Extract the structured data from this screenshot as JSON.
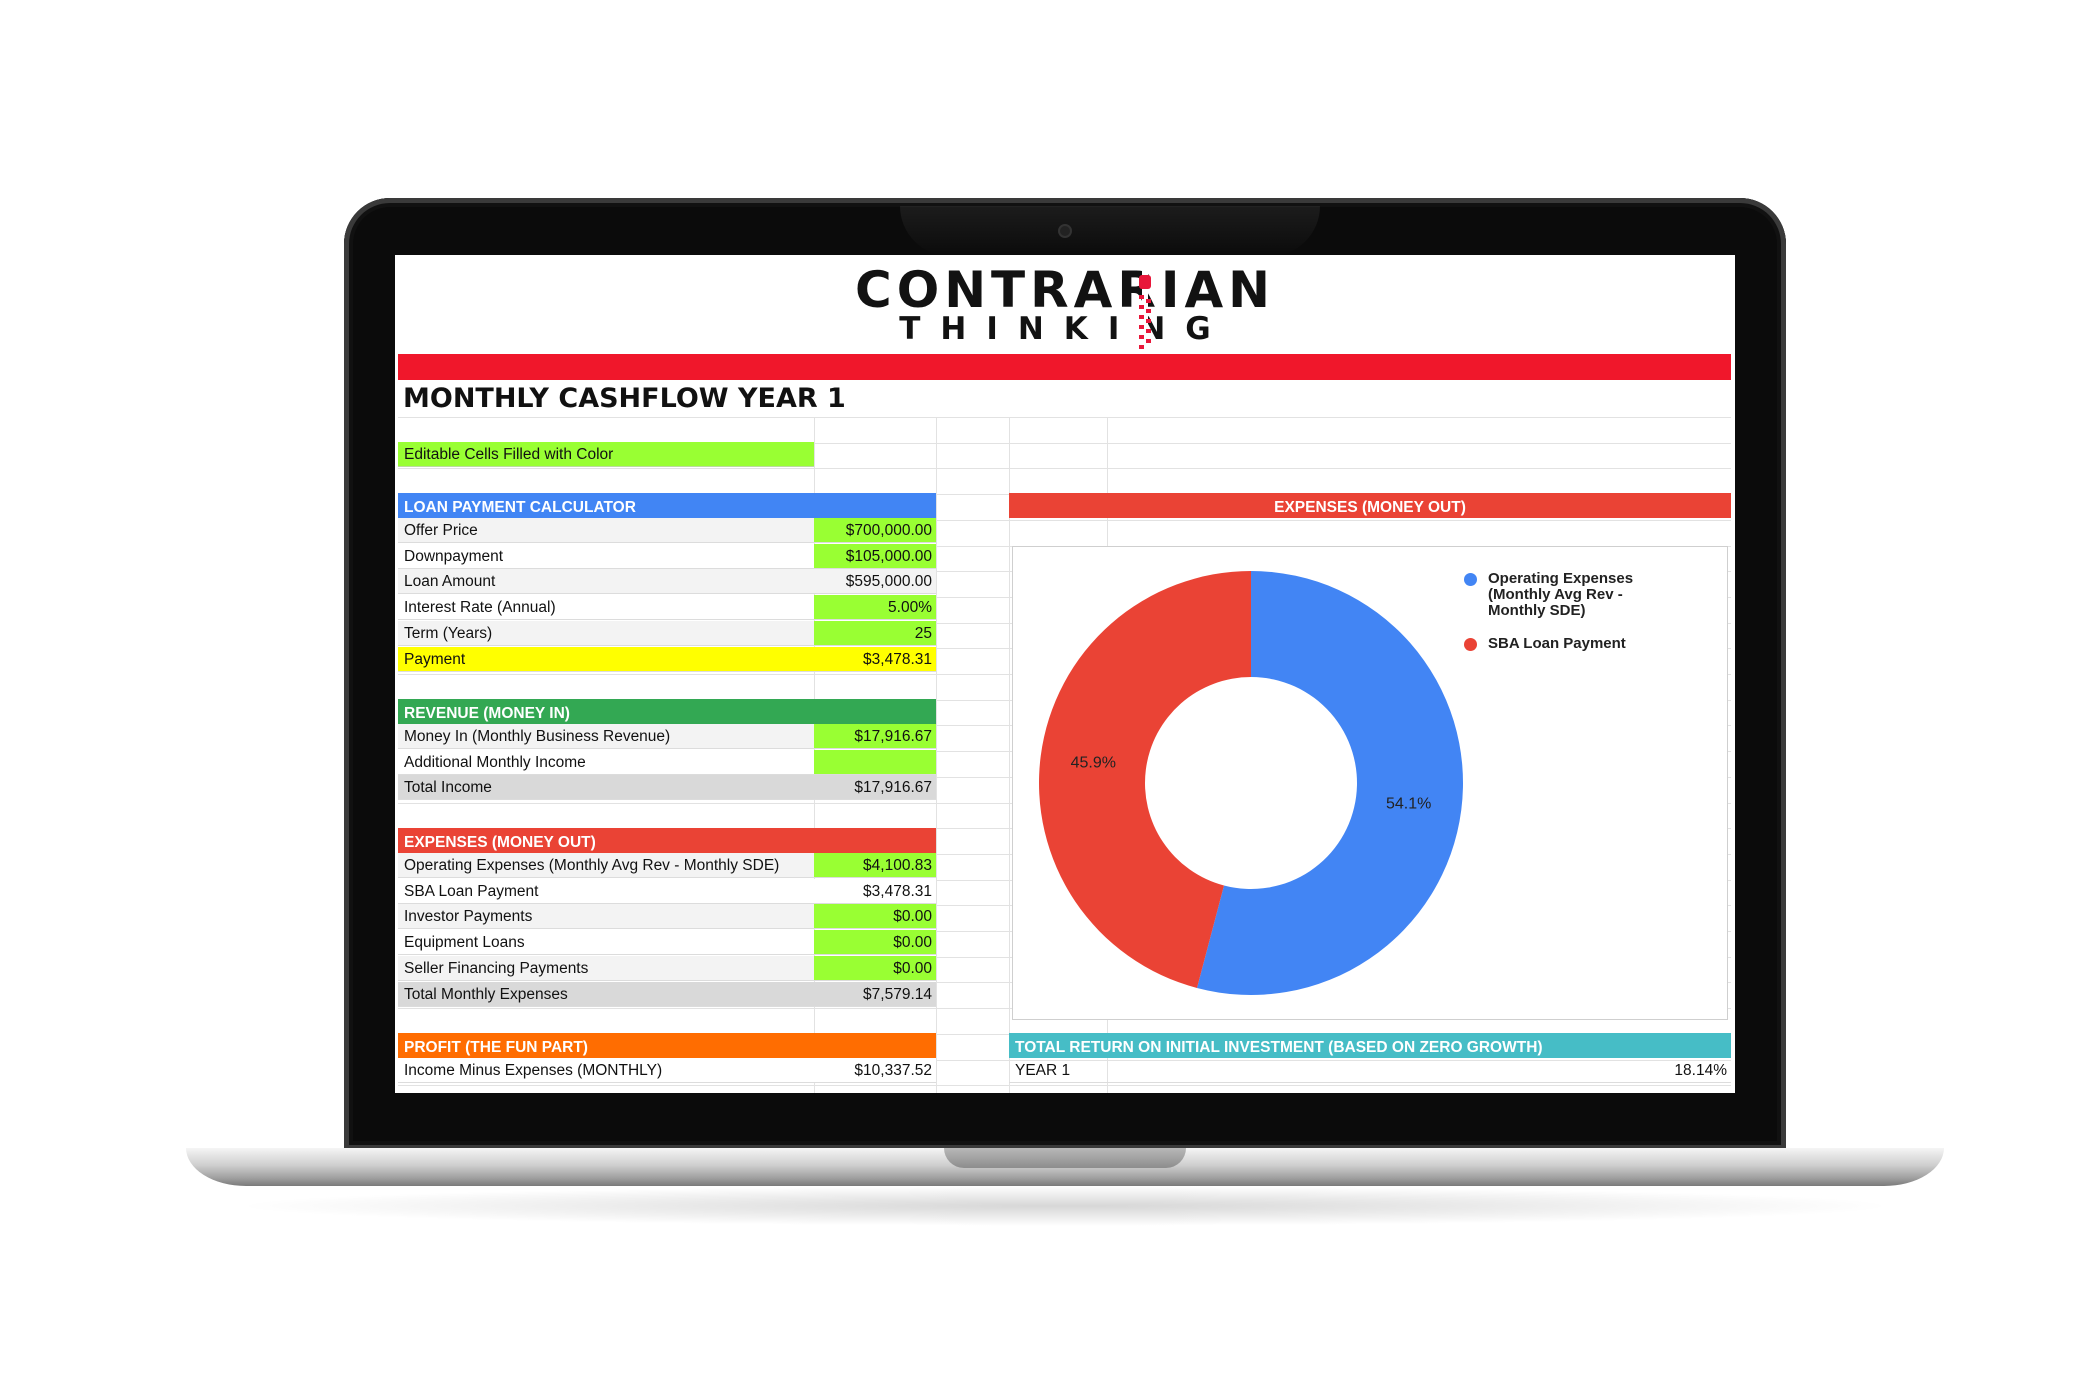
{
  "logo": {
    "line1": "CONTRARIAN",
    "line2": "THINKING"
  },
  "sheet_title": "MONTHLY CASHFLOW YEAR 1",
  "legend_note": "Editable Cells Filled with Color",
  "colors": {
    "banner_red": "#f0172b",
    "editable_green": "#99ff33",
    "payment_yellow": "#ffff00",
    "total_gray": "#d9d9d9",
    "loan_header_blue": "#4185f4",
    "revenue_header_green": "#33a853",
    "expenses_header_red": "#ea4335",
    "profit_header_orange": "#ff6d01",
    "return_header_teal": "#46bdc6"
  },
  "loan": {
    "header": "LOAN PAYMENT CALCULATOR",
    "rows": [
      {
        "label": "Offer Price",
        "value": "$700,000.00"
      },
      {
        "label": "Downpayment",
        "value": "$105,000.00"
      },
      {
        "label": "Loan Amount",
        "value": "$595,000.00"
      },
      {
        "label": "Interest Rate (Annual)",
        "value": "5.00%"
      },
      {
        "label": "Term (Years)",
        "value": "25"
      },
      {
        "label": "Payment",
        "value": "$3,478.31"
      }
    ]
  },
  "revenue": {
    "header": "REVENUE (MONEY IN)",
    "rows": [
      {
        "label": "Money In (Monthly Business Revenue)",
        "value": "$17,916.67"
      },
      {
        "label": "Additional Monthly Income",
        "value": ""
      },
      {
        "label": "Total Income",
        "value": "$17,916.67"
      }
    ]
  },
  "expenses": {
    "header": "EXPENSES (MONEY OUT)",
    "rows": [
      {
        "label": "Operating Expenses (Monthly Avg Rev - Monthly SDE)",
        "value": "$4,100.83"
      },
      {
        "label": "SBA Loan Payment",
        "value": "$3,478.31"
      },
      {
        "label": "Investor Payments",
        "value": "$0.00"
      },
      {
        "label": "Equipment Loans",
        "value": "$0.00"
      },
      {
        "label": "Seller Financing Payments",
        "value": "$0.00"
      },
      {
        "label": "Total Monthly Expenses",
        "value": "$7,579.14"
      }
    ]
  },
  "profit": {
    "header": "PROFIT (THE FUN PART)",
    "rows": [
      {
        "label": "Income Minus Expenses (MONTHLY)",
        "value": "$10,337.52"
      }
    ]
  },
  "total_return": {
    "header": "TOTAL RETURN ON INITIAL INVESTMENT (BASED ON ZERO GROWTH)",
    "rows": [
      {
        "label": "YEAR 1",
        "value": "18.14%"
      }
    ]
  },
  "chart_header": "EXPENSES (MONEY OUT)",
  "chart_data": {
    "type": "pie",
    "donut": true,
    "categories": [
      "Operating Expenses (Monthly Avg Rev - Monthly SDE)",
      "SBA Loan Payment"
    ],
    "values": [
      54.1,
      45.9
    ],
    "data_labels": [
      "54.1%",
      "45.9%"
    ],
    "colors": [
      "#4285f4",
      "#ea4335"
    ],
    "legend_position": "top-right",
    "legend": [
      {
        "line1": "Operating Expenses",
        "line2": "(Monthly Avg Rev -",
        "line3": "Monthly SDE)"
      },
      {
        "line1": "SBA Loan Payment"
      }
    ]
  }
}
